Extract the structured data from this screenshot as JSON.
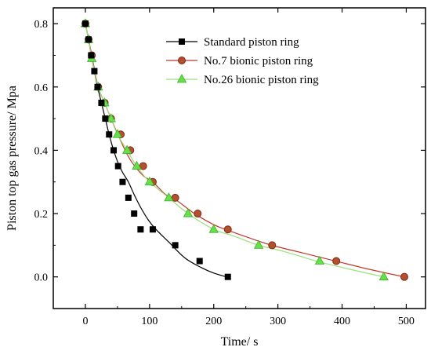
{
  "chart_data": {
    "type": "line",
    "title": "",
    "xlabel": "Time/ s",
    "ylabel": "Piston top gas pressure/ Mpa",
    "xlim": [
      -50,
      530
    ],
    "ylim": [
      -0.1,
      0.85
    ],
    "xticks": [
      0,
      100,
      200,
      300,
      400,
      500
    ],
    "xtick_labels": [
      "0",
      "100",
      "200",
      "300",
      "400",
      "500"
    ],
    "yticks": [
      0.0,
      0.2,
      0.4,
      0.6,
      0.8
    ],
    "ytick_labels": [
      "0.0",
      "0.2",
      "0.4",
      "0.6",
      "0.8"
    ],
    "grid": false,
    "legend": "top-right",
    "series": [
      {
        "name": "Standard piston ring",
        "color": "#000000",
        "marker": "square",
        "x": [
          0,
          5,
          9,
          14,
          19,
          25,
          31,
          37,
          44,
          51,
          58,
          67,
          76,
          86,
          98,
          110,
          130,
          155,
          180,
          200,
          220
        ],
        "y": [
          0.8,
          0.75,
          0.7,
          0.65,
          0.6,
          0.55,
          0.5,
          0.45,
          0.4,
          0.36,
          0.33,
          0.3,
          0.26,
          0.22,
          0.18,
          0.15,
          0.11,
          0.06,
          0.03,
          0.012,
          0.0
        ],
        "marker_x": [
          0,
          5,
          9,
          14,
          19,
          25,
          31,
          37,
          44,
          51,
          58,
          67,
          76,
          86,
          105,
          140,
          178,
          222
        ],
        "marker_y": [
          0.8,
          0.75,
          0.7,
          0.65,
          0.6,
          0.55,
          0.5,
          0.45,
          0.4,
          0.35,
          0.3,
          0.25,
          0.2,
          0.15,
          0.15,
          0.1,
          0.05,
          0.0
        ]
      },
      {
        "name": "No.7 bionic piston ring",
        "color": "#c0392b",
        "marker": "circle",
        "marker_fill": "#b5502e",
        "x": [
          0,
          5,
          10,
          20,
          30,
          40,
          55,
          70,
          90,
          105,
          125,
          140,
          170,
          200,
          225,
          260,
          290,
          340,
          390,
          440,
          497
        ],
        "y": [
          0.8,
          0.75,
          0.7,
          0.6,
          0.55,
          0.5,
          0.43,
          0.37,
          0.32,
          0.3,
          0.26,
          0.245,
          0.2,
          0.165,
          0.145,
          0.12,
          0.1,
          0.075,
          0.05,
          0.025,
          0.0
        ],
        "marker_x": [
          0,
          5,
          10,
          20,
          30,
          40,
          55,
          70,
          90,
          105,
          140,
          175,
          222,
          291,
          391,
          497
        ],
        "marker_y": [
          0.8,
          0.75,
          0.7,
          0.6,
          0.55,
          0.5,
          0.45,
          0.4,
          0.35,
          0.3,
          0.25,
          0.2,
          0.15,
          0.1,
          0.05,
          0.0
        ]
      },
      {
        "name": "No.26 bionic piston ring",
        "color": "#9be07a",
        "marker": "triangle",
        "marker_fill": "#66e04a",
        "x": [
          0,
          5,
          10,
          20,
          30,
          40,
          50,
          65,
          80,
          100,
          130,
          160,
          200,
          230,
          270,
          310,
          360,
          410,
          465
        ],
        "y": [
          0.8,
          0.75,
          0.69,
          0.6,
          0.55,
          0.5,
          0.45,
          0.4,
          0.35,
          0.3,
          0.25,
          0.2,
          0.15,
          0.13,
          0.1,
          0.08,
          0.05,
          0.025,
          0.0
        ],
        "marker_x": [
          0,
          5,
          10,
          20,
          30,
          40,
          50,
          65,
          80,
          100,
          130,
          160,
          200,
          270,
          365,
          465
        ],
        "marker_y": [
          0.8,
          0.75,
          0.69,
          0.6,
          0.55,
          0.5,
          0.45,
          0.4,
          0.35,
          0.3,
          0.25,
          0.2,
          0.15,
          0.1,
          0.05,
          0.0
        ]
      }
    ]
  }
}
